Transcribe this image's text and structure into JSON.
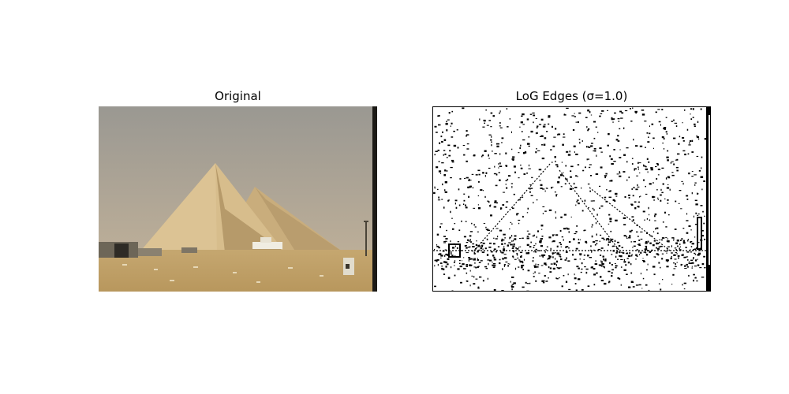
{
  "figure": {
    "panels": [
      {
        "title": "Original"
      },
      {
        "title": "LoG Edges (σ=1.0)"
      }
    ]
  },
  "colors": {
    "sky_top": "#9a9892",
    "sky_bottom": "#b9ac96",
    "pyramid_light": "#d9bf8e",
    "pyramid_shadow": "#b59a6c",
    "ground": "#c7a96e",
    "edge": "#000000",
    "background": "#ffffff"
  }
}
